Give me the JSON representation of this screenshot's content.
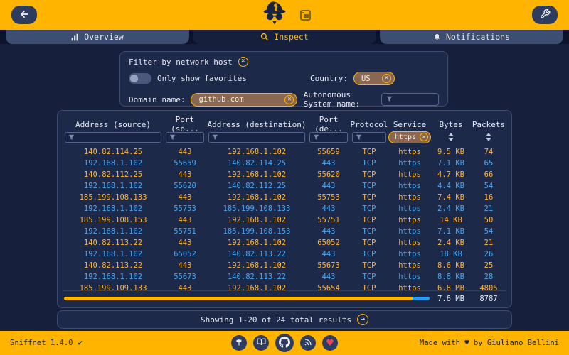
{
  "colors": {
    "accent": "#FFB400",
    "page-bg": "#16203C",
    "strip-bg": "#0B142C",
    "panel-bg": "#1D2949",
    "panel-border": "#3C4C72",
    "tab-bg": "#3E4E72",
    "row-amber": "#FFB438",
    "row-blue": "#47A6F5",
    "pill-brown": "#8A6750",
    "thumb-blue": "#2F9BF0",
    "heart-red": "#F0435A"
  },
  "tabs": [
    {
      "label": "Overview",
      "active": false
    },
    {
      "label": "Inspect",
      "active": true
    },
    {
      "label": "Notifications",
      "active": false
    }
  ],
  "filter": {
    "title": "Filter by network host",
    "favorites_label": "Only show favorites",
    "country_label": "Country:",
    "country_value": "US",
    "domain_label": "Domain name:",
    "domain_value": "github.com",
    "asn_label": "Autonomous System name:"
  },
  "table": {
    "columns": [
      "Address (source)",
      "Port (so...",
      "Address (destination)",
      "Port (de...",
      "Protocol",
      "Service",
      "Bytes",
      "Packets"
    ],
    "service_filter_value": "https",
    "rows": [
      [
        "140.82.114.25",
        "443",
        "192.168.1.102",
        "55659",
        "TCP",
        "https",
        "9.5 KB",
        "74"
      ],
      [
        "192.168.1.102",
        "55659",
        "140.82.114.25",
        "443",
        "TCP",
        "https",
        "7.1 KB",
        "65"
      ],
      [
        "140.82.112.25",
        "443",
        "192.168.1.102",
        "55620",
        "TCP",
        "https",
        "4.7 KB",
        "66"
      ],
      [
        "192.168.1.102",
        "55620",
        "140.82.112.25",
        "443",
        "TCP",
        "https",
        "4.4 KB",
        "54"
      ],
      [
        "185.199.108.133",
        "443",
        "192.168.1.102",
        "55753",
        "TCP",
        "https",
        "7.4 KB",
        "16"
      ],
      [
        "192.168.1.102",
        "55753",
        "185.199.108.133",
        "443",
        "TCP",
        "https",
        "2.4 KB",
        "21"
      ],
      [
        "185.199.108.153",
        "443",
        "192.168.1.102",
        "55751",
        "TCP",
        "https",
        "14 KB",
        "50"
      ],
      [
        "192.168.1.102",
        "55751",
        "185.199.108.153",
        "443",
        "TCP",
        "https",
        "7.1 KB",
        "54"
      ],
      [
        "140.82.113.22",
        "443",
        "192.168.1.102",
        "65052",
        "TCP",
        "https",
        "2.4 KB",
        "21"
      ],
      [
        "192.168.1.102",
        "65052",
        "140.82.113.22",
        "443",
        "TCP",
        "https",
        "18 KB",
        "26"
      ],
      [
        "140.82.113.22",
        "443",
        "192.168.1.102",
        "55673",
        "TCP",
        "https",
        "8.6 KB",
        "25"
      ],
      [
        "192.168.1.102",
        "55673",
        "140.82.113.22",
        "443",
        "TCP",
        "https",
        "8.8 KB",
        "28"
      ],
      [
        "185.199.109.133",
        "443",
        "192.168.1.102",
        "55654",
        "TCP",
        "https",
        "6.8 MB",
        "4805"
      ]
    ],
    "totals": {
      "bytes": "7.6 MB",
      "packets": "8787"
    }
  },
  "pagination": {
    "text": "Showing 1-20 of 24 total results",
    "next_glyph": "→"
  },
  "footer": {
    "version": "Sniffnet 1.4.0",
    "check": "✔",
    "credit_prefix": "Made with ♥ by",
    "credit_name": "Giuliano Bellini"
  }
}
